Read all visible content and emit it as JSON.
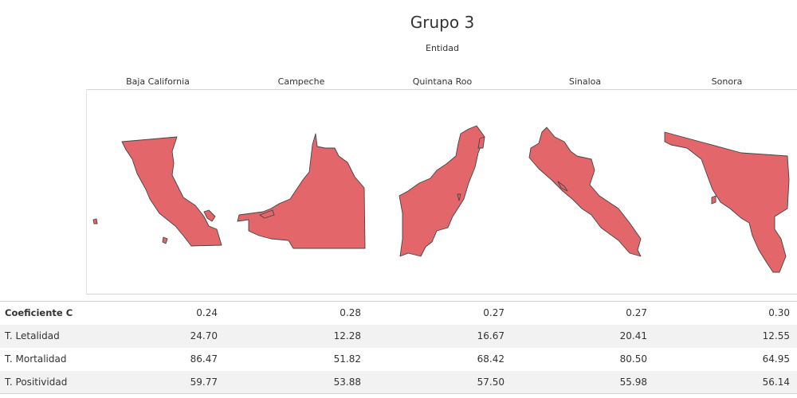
{
  "title": "Grupo 3",
  "subtitle": "Entidad",
  "states": [
    "Baja California",
    "Campeche",
    "Quintana Roo",
    "Sinaloa",
    "Sonora"
  ],
  "map_fill": "#e3666a",
  "map_stroke": "#444444",
  "table": {
    "rows": [
      {
        "label": "Coeficiente C",
        "values": [
          "0.24",
          "0.28",
          "0.27",
          "0.27",
          "0.30"
        ]
      },
      {
        "label": "T. Letalidad",
        "values": [
          "24.70",
          "12.28",
          "16.67",
          "20.41",
          "12.55"
        ]
      },
      {
        "label": "T. Mortalidad",
        "values": [
          "86.47",
          "51.82",
          "68.42",
          "80.50",
          "64.95"
        ]
      },
      {
        "label": "T. Positividad",
        "values": [
          "59.77",
          "53.88",
          "57.50",
          "55.98",
          "56.14"
        ]
      }
    ]
  }
}
